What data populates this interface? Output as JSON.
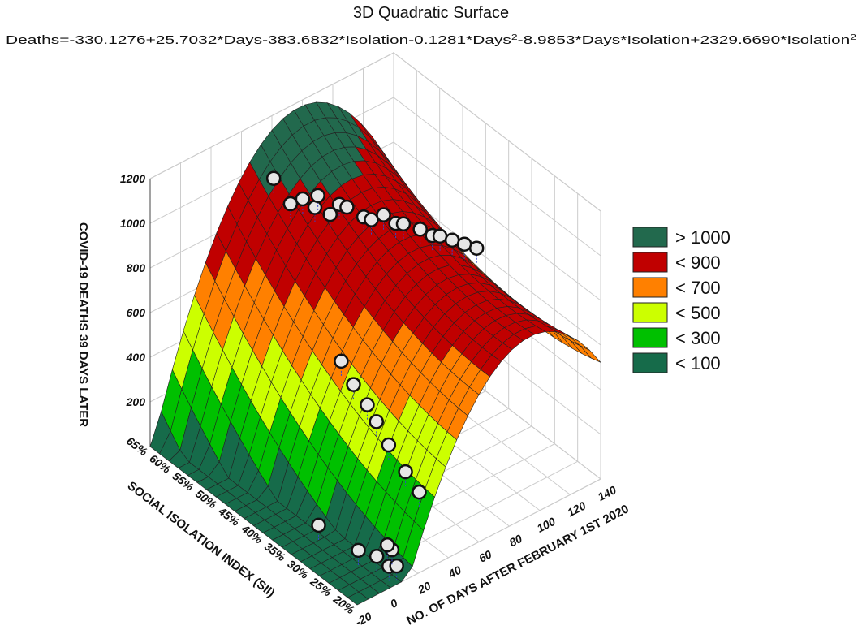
{
  "chart_data": {
    "type": "surface3d",
    "title": "3D Quadratic Surface",
    "subtitle": [
      "Deaths=-330.1276+25.7032*Days-383.6832*Isolation-0.1281*Days",
      "2",
      "-8.9853*Days*Isolation+2329.6690*Isolation",
      "2"
    ],
    "xlabel": "NO. OF DAYS AFTER FEBRUARY 1ST 2020",
    "ylabel": "SOCIAL ISOLATION INDEX (SII)",
    "zlabel": "COVID-19 DEATHS 39 DAYS LATER",
    "xlim": [
      -20,
      140
    ],
    "xticks": [
      -20,
      0,
      20,
      40,
      60,
      80,
      100,
      120,
      140
    ],
    "ylim": [
      20,
      65
    ],
    "yticks": [
      {
        "value": 20,
        "label": "20%"
      },
      {
        "value": 25,
        "label": "25%"
      },
      {
        "value": 30,
        "label": "30%"
      },
      {
        "value": 35,
        "label": "35%"
      },
      {
        "value": 40,
        "label": "40%"
      },
      {
        "value": 45,
        "label": "45%"
      },
      {
        "value": 50,
        "label": "50%"
      },
      {
        "value": 55,
        "label": "55%"
      },
      {
        "value": 60,
        "label": "60%"
      },
      {
        "value": 65,
        "label": "65%"
      }
    ],
    "zlim": [
      0,
      1200
    ],
    "zticks": [
      200,
      400,
      600,
      800,
      1000,
      1200
    ],
    "grid": true,
    "legend": [
      {
        "name": "> 1000",
        "value": 1000,
        "color": "#22694d"
      },
      {
        "name": "< 900",
        "value": 900,
        "color": "#c00000"
      },
      {
        "name": "< 700",
        "value": 700,
        "color": "#ff8000"
      },
      {
        "name": "< 500",
        "value": 500,
        "color": "#ccff00"
      },
      {
        "name": "< 300",
        "value": 300,
        "color": "#00c000"
      },
      {
        "name": "< 100",
        "value": 100,
        "color": "#166b4a"
      }
    ],
    "points": {
      "days": [
        40,
        45,
        50,
        55,
        60,
        62,
        65,
        70,
        75,
        80,
        85,
        90,
        95,
        100,
        105,
        110,
        115,
        120,
        125,
        30,
        32,
        35,
        38,
        40,
        42,
        45,
        0,
        5,
        8,
        10,
        12,
        15,
        18
      ],
      "isolation": [
        58,
        56,
        55,
        54,
        55,
        53,
        52,
        52,
        50,
        50,
        49,
        48,
        48,
        46,
        45,
        45,
        44,
        43,
        42,
        40,
        38,
        36,
        35,
        33,
        30,
        28,
        35,
        28,
        25,
        23,
        22,
        24,
        26
      ],
      "deaths": [
        1100,
        1000,
        1020,
        980,
        1000,
        940,
        990,
        960,
        930,
        900,
        920,
        880,
        860,
        850,
        820,
        800,
        780,
        760,
        740,
        600,
        520,
        450,
        380,
        300,
        220,
        150,
        50,
        30,
        40,
        20,
        30,
        60,
        40
      ]
    }
  }
}
